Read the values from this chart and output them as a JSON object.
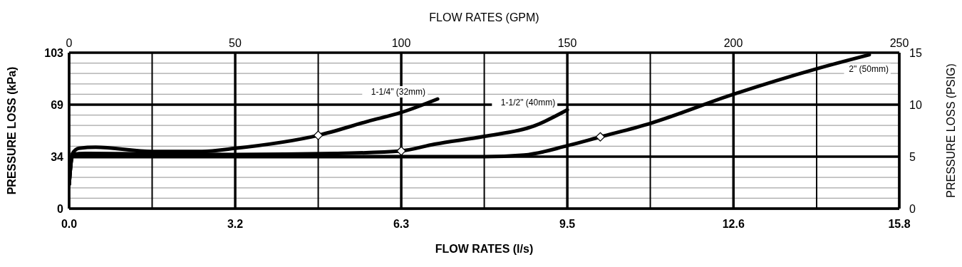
{
  "chart_data": {
    "type": "line",
    "xlabel": "FLOW RATES (l/s)",
    "x2label": "FLOW RATES (GPM)",
    "ylabel": "PRESSURE LOSS (kPa)",
    "y2label": "PRESSURE LOSS (PSIG)",
    "xlim": [
      0,
      15.77
    ],
    "xticks": [
      {
        "value": 0,
        "label": "0.0"
      },
      {
        "value": 1.577,
        "label": null
      },
      {
        "value": 3.155,
        "label": "3.2"
      },
      {
        "value": 4.732,
        "label": null
      },
      {
        "value": 6.309,
        "label": "6.3"
      },
      {
        "value": 7.886,
        "label": null
      },
      {
        "value": 9.464,
        "label": "9.5"
      },
      {
        "value": 11.04,
        "label": null
      },
      {
        "value": 12.62,
        "label": "12.6"
      },
      {
        "value": 14.2,
        "label": null
      },
      {
        "value": 15.77,
        "label": "15.8"
      }
    ],
    "x2lim": [
      0,
      250
    ],
    "x2ticks": [
      0,
      50,
      100,
      150,
      200,
      250
    ],
    "ylim": [
      0,
      103.42
    ],
    "yticks": [
      0,
      {
        "value": 34.47,
        "label": "34"
      },
      {
        "value": 68.95,
        "label": "69"
      },
      {
        "value": 103.42,
        "label": "103"
      }
    ],
    "y2lim": [
      0,
      15
    ],
    "y2ticks": [
      0,
      {
        "value": 1,
        "label": null
      },
      {
        "value": 2,
        "label": null
      },
      {
        "value": 3,
        "label": null
      },
      {
        "value": 4,
        "label": null
      },
      5,
      {
        "value": 6,
        "label": null
      },
      {
        "value": 7,
        "label": null
      },
      {
        "value": 8,
        "label": null
      },
      {
        "value": 9,
        "label": null
      },
      10,
      {
        "value": 11,
        "label": null
      },
      {
        "value": 12,
        "label": null
      },
      {
        "value": 13,
        "label": null
      },
      {
        "value": 14,
        "label": null
      },
      15
    ],
    "grid": true,
    "line_style": "solid",
    "series": [
      {
        "name": "1-1/4\" (32mm)",
        "color": "#000000",
        "axis": "y2",
        "x": [
          0,
          0.063,
          0.189,
          0.505,
          1.577,
          2.524,
          3.155,
          4.732,
          5.678,
          6.309,
          7.0
        ],
        "values": [
          2.3,
          5.3,
          5.8,
          5.9,
          5.5,
          5.5,
          5.8,
          7.05,
          8.4,
          9.25,
          10.55
        ]
      },
      {
        "name": "1-1/2\" (40mm)",
        "color": "#000000",
        "axis": "y2",
        "x": [
          0,
          0.063,
          0.315,
          3.155,
          5.047,
          6.309,
          6.94,
          7.886,
          8.833,
          9.464
        ],
        "values": [
          2.3,
          5.2,
          5.3,
          5.2,
          5.3,
          5.55,
          6.2,
          6.95,
          7.95,
          9.5
        ]
      },
      {
        "name": "2\" (50mm)",
        "color": "#000000",
        "axis": "y2",
        "x": [
          0,
          0.063,
          3.155,
          6.309,
          7.886,
          8.643,
          9.464,
          10.09,
          11.04,
          12.62,
          14.2,
          15.2
        ],
        "values": [
          2.3,
          5.0,
          5.0,
          5.0,
          5.0,
          5.15,
          6.05,
          6.9,
          8.2,
          11.0,
          13.45,
          14.8
        ]
      },
      {
        "type": "scatter",
        "marker": "diamond",
        "color": "#ffffff",
        "axis": "y2",
        "x": [
          4.732,
          6.309,
          10.09
        ],
        "values": [
          7.05,
          5.55,
          6.9
        ]
      }
    ]
  }
}
